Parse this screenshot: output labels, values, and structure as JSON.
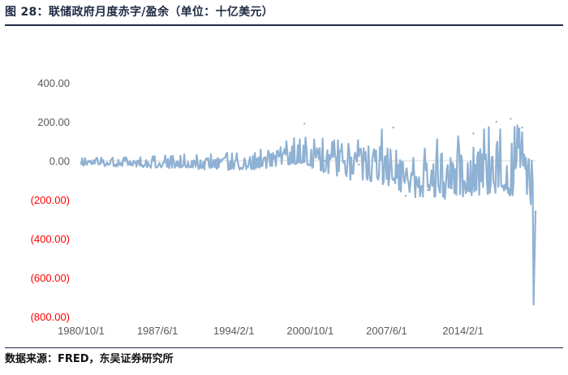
{
  "figure": {
    "title": "图 28：联储政府月度赤字/盈余（单位：十亿美元）",
    "source": "数据来源：FRED，东吴证券研究所"
  },
  "colors": {
    "series": "#8fb1d3",
    "zero_line": "#d9d9d9",
    "positive_tick": "#595959",
    "negative_tick": "#ff0000",
    "rule": "#1f2a44"
  },
  "chart_data": {
    "type": "line",
    "title": "",
    "xlabel": "",
    "ylabel": "",
    "x_range": [
      "1980/10/1",
      "2020/6/1"
    ],
    "ylim": [
      -800,
      400
    ],
    "yticks": [
      400,
      200,
      0,
      -200,
      -400,
      -600,
      -800
    ],
    "ytick_labels": [
      "400.00",
      "200.00",
      "0.00",
      "(200.00)",
      "(400.00)",
      "(600.00)",
      "(800.00)"
    ],
    "xtick_labels": [
      "1980/10/1",
      "1987/6/1",
      "1994/2/1",
      "2000/10/1",
      "2007/6/1",
      "2014/2/1"
    ],
    "negative_label_color": "red",
    "grid": false,
    "legend": "none",
    "series": [
      {
        "x": [
          "1980/10/1",
          "1985/1/1",
          "1990/1/1",
          "1995/1/1",
          "1998/1/1",
          "2000/4/1",
          "2002/1/1",
          "2005/1/1",
          "2008/1/1",
          "2009/2/1",
          "2011/1/1",
          "2013/1/1",
          "2015/1/1",
          "2017/1/1",
          "2018/4/1",
          "2019/4/1",
          "2020/3/1",
          "2020/4/1",
          "2020/6/1"
        ],
        "values": [
          -10,
          -20,
          -30,
          -20,
          20,
          190,
          0,
          -20,
          170,
          -180,
          -150,
          -140,
          140,
          200,
          215,
          170,
          -110,
          -738,
          -260
        ],
        "envelope": {
          "x": [
            "1980/10/1",
            "1985/1/1",
            "1990/1/1",
            "1993/1/1",
            "1996/1/1",
            "1998/6/1",
            "2000/4/1",
            "2001/6/1",
            "2004/1/1",
            "2007/1/1",
            "2008/6/1",
            "2009/6/1",
            "2012/1/1",
            "2015/1/1",
            "2018/1/1",
            "2020/1/1"
          ],
          "high": [
            15,
            20,
            35,
            40,
            50,
            90,
            190,
            120,
            100,
            170,
            175,
            0,
            130,
            170,
            215,
            160
          ],
          "low": [
            -25,
            -35,
            -40,
            -50,
            -45,
            -30,
            -10,
            -70,
            -100,
            -120,
            -160,
            -190,
            -200,
            -180,
            -190,
            -230
          ]
        }
      }
    ]
  }
}
